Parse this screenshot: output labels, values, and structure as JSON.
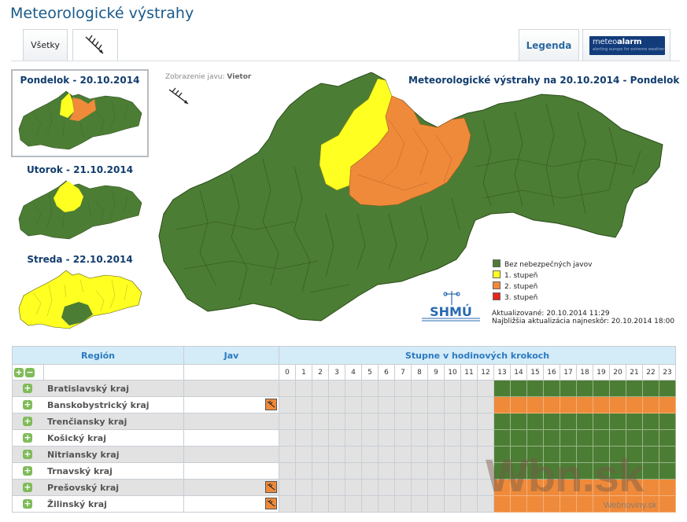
{
  "page": {
    "title": "Meteorologické výstrahy"
  },
  "tabs": {
    "all_label": "Všetky",
    "wind_icon": "wind-arrow-icon",
    "legend_label": "Legenda",
    "meteoalarm": {
      "name_a": "meteo",
      "name_b": "alarm",
      "tagline": "alerting europe for extreme weather"
    }
  },
  "days": [
    {
      "label": "Pondelok - 20.10.2014",
      "selected": true
    },
    {
      "label": "Utorok - 21.10.2014",
      "selected": false
    },
    {
      "label": "Streda - 22.10.2014",
      "selected": false
    }
  ],
  "map": {
    "phenomenon_prefix": "Zobrazenie javu:",
    "phenomenon": "Vietor",
    "title": "Meteorologické výstrahy na 20.10.2014 - Pondelok",
    "legend": [
      {
        "label": "Bez nebezpečných javov",
        "color": "#4c7d34"
      },
      {
        "label": "1. stupeň",
        "color": "#ffff22"
      },
      {
        "label": "2. stupeň",
        "color": "#ef8a3a"
      },
      {
        "label": "3. stupeň",
        "color": "#e8241e"
      }
    ],
    "updated": "Aktualizované: 20.10.2014 11:29",
    "next_update": "Najbližšia aktualizácia najneskôr: 20.10.2014 18:00",
    "logo_text": "SHMÚ"
  },
  "table": {
    "col_region": "Región",
    "col_jav": "Jav",
    "col_steps": "Stupne v hodinových krokoch",
    "hours": [
      "0",
      "1",
      "2",
      "3",
      "4",
      "5",
      "6",
      "7",
      "8",
      "9",
      "10",
      "11",
      "12",
      "13",
      "14",
      "15",
      "16",
      "17",
      "18",
      "19",
      "20",
      "21",
      "22",
      "23"
    ],
    "regions": [
      {
        "name": "Bratislavský kraj",
        "warn": false
      },
      {
        "name": "Banskobystrický kraj",
        "warn": true
      },
      {
        "name": "Trenčiansky kraj",
        "warn": false
      },
      {
        "name": "Košický kraj",
        "warn": false
      },
      {
        "name": "Nitriansky kraj",
        "warn": false
      },
      {
        "name": "Trnavský kraj",
        "warn": false
      },
      {
        "name": "Prešovský kraj",
        "warn": true
      },
      {
        "name": "Žilinský kraj",
        "warn": true
      }
    ]
  },
  "watermark": {
    "main": "Wbn.sk",
    "sub": "Webnoviny.sk"
  }
}
